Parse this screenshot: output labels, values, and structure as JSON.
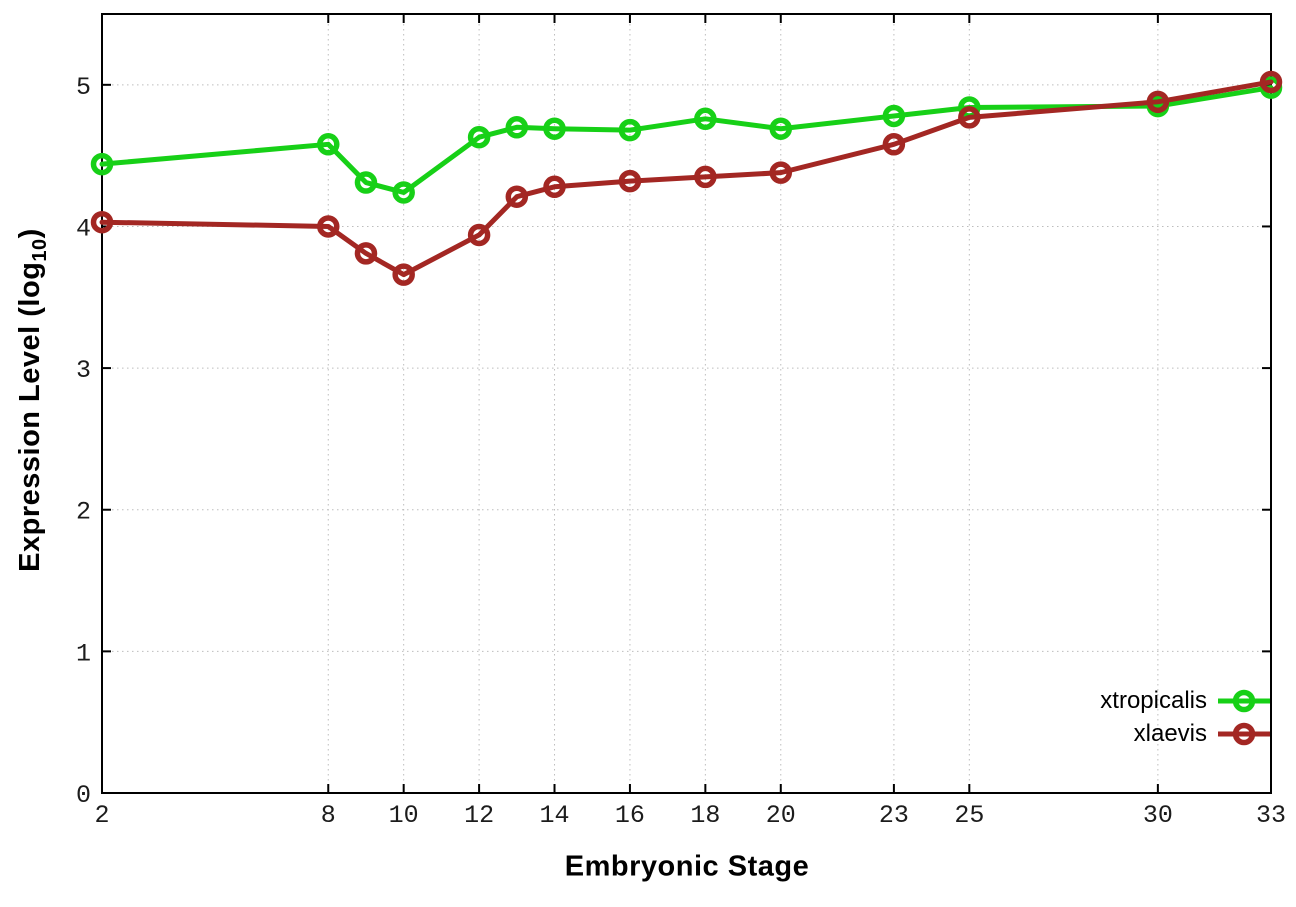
{
  "figure": {
    "background": "#ffffff",
    "axis_color": "#000000",
    "grid_color": "#bdbdbd",
    "tick_label_color": "#1c1c1c"
  },
  "chart_data": {
    "type": "line",
    "title": "",
    "xlabel": "Embryonic Stage",
    "ylabel": "Expression Level (log10)",
    "ylabel_parts": {
      "prefix": "Expression Level (log",
      "sub": "10",
      "suffix": ")"
    },
    "xlim": [
      2,
      33
    ],
    "ylim": [
      0,
      5.5
    ],
    "x_ticks": [
      2,
      8,
      10,
      12,
      14,
      16,
      18,
      20,
      23,
      25,
      30,
      33
    ],
    "y_ticks": [
      0,
      1,
      2,
      3,
      4,
      5
    ],
    "grid": true,
    "legend_position": "inside-bottom-right",
    "x": [
      2,
      8,
      9,
      10,
      12,
      13,
      14,
      16,
      18,
      20,
      23,
      25,
      30,
      33
    ],
    "series": [
      {
        "name": "xtropicalis",
        "color": "#17d017",
        "values": [
          4.44,
          4.58,
          4.31,
          4.24,
          4.63,
          4.7,
          4.69,
          4.68,
          4.76,
          4.69,
          4.78,
          4.84,
          4.85,
          4.98
        ]
      },
      {
        "name": "xlaevis",
        "color": "#a32723",
        "values": [
          4.03,
          4.0,
          3.81,
          3.66,
          3.94,
          4.21,
          4.28,
          4.32,
          4.35,
          4.38,
          4.58,
          4.77,
          4.88,
          5.02
        ]
      }
    ]
  }
}
